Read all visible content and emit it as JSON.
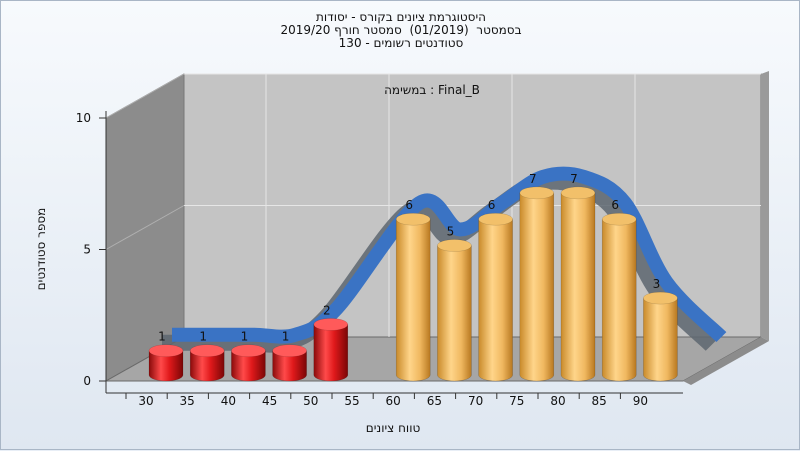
{
  "chart_data": {
    "type": "bar",
    "title_lines": [
      "היסטוגרמת ציונים בקורס - יסודות",
      "בסמסטר  (01/2019)  סמסטר חורף 2019/20",
      "130 - סטודנטים רשומים"
    ],
    "annotation": "במשימה : Final_B",
    "xlabel": "טווח ציונים",
    "ylabel": "מספר סטודנטים",
    "x_ticks": [
      "30",
      "35",
      "40",
      "45",
      "50",
      "55",
      "60",
      "65",
      "70",
      "75",
      "80",
      "85",
      "90"
    ],
    "y_ticks": [
      "0",
      "5",
      "10"
    ],
    "ylim": [
      0,
      10
    ],
    "categories": [
      "30",
      "35",
      "40",
      "45",
      "50",
      "60",
      "65",
      "70",
      "75",
      "80",
      "85",
      "90"
    ],
    "values": [
      1,
      1,
      1,
      1,
      2,
      6,
      5,
      6,
      7,
      7,
      6,
      3
    ],
    "bar_colors": [
      "#e0191b",
      "#e0191b",
      "#e0191b",
      "#e0191b",
      "#e0191b",
      "#e5a040",
      "#e5a040",
      "#e5a040",
      "#e5a040",
      "#e5a040",
      "#e5a040",
      "#e5a040"
    ],
    "trend_line_color": "#3a73c4",
    "grid": true,
    "style": "3d-cylinder"
  }
}
